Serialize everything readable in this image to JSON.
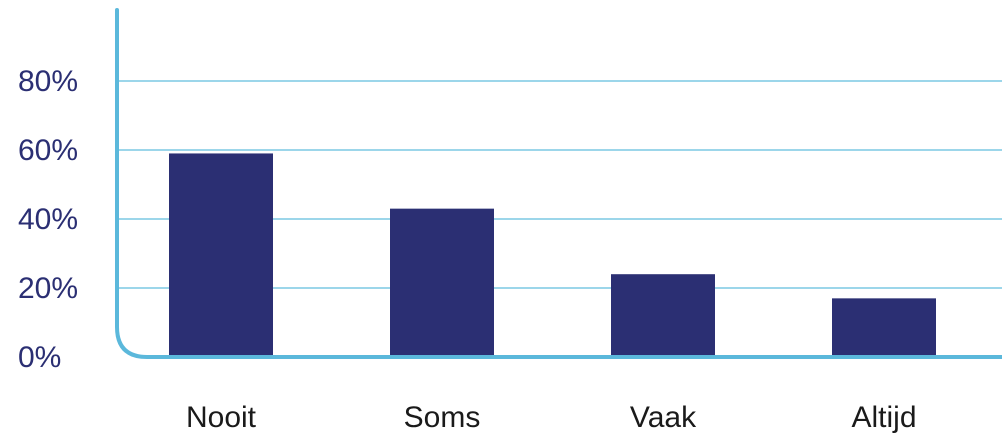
{
  "chart_data": {
    "type": "bar",
    "categories": [
      "Nooit",
      "Soms",
      "Vaak",
      "Altijd"
    ],
    "values": [
      59,
      43,
      24,
      17
    ],
    "unit": "%",
    "ylim": [
      0,
      100
    ],
    "yticks": [
      0,
      20,
      40,
      60,
      80
    ],
    "ytick_labels": [
      "0%",
      "20%",
      "40%",
      "60%",
      "80%"
    ],
    "title": "",
    "xlabel": "",
    "ylabel": "",
    "grid": true,
    "legend": "none"
  },
  "colors": {
    "bar": "#2b2f73",
    "axis": "#5bb8db",
    "grid": "#7cc8e4",
    "tick_text": "#2b2f73",
    "category_text": "#1a1a1a"
  }
}
